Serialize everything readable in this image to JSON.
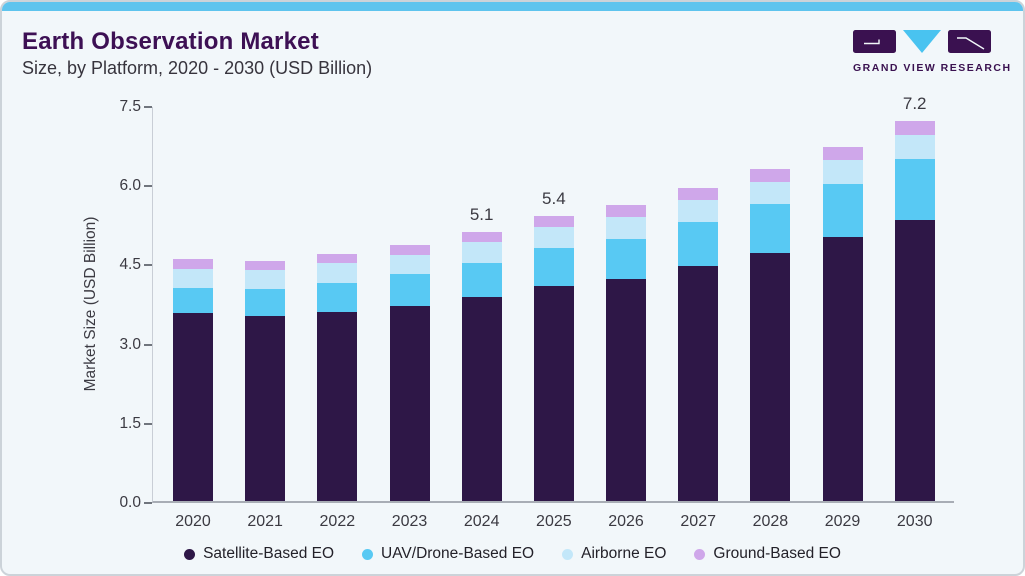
{
  "header": {
    "title": "Earth Observation Market",
    "subtitle": "Size, by Platform, 2020 - 2030 (USD Billion)"
  },
  "logo": {
    "text": "GRAND VIEW RESEARCH",
    "mark_color": "#3a1150",
    "triangle_color": "#49c3f0"
  },
  "colors": {
    "accent_top_bar": "#5ec4ee",
    "card_background": "#f2f7fa",
    "title_purple": "#3d1054",
    "axis_text": "#3b3a42"
  },
  "chart_data": {
    "type": "bar",
    "stacked": true,
    "title": "Earth Observation Market Size, by Platform, 2020 - 2030 (USD Billion)",
    "xlabel": "",
    "ylabel": "Market Size (USD Billion)",
    "ylim": [
      0,
      7.5
    ],
    "yticks": [
      "0.0",
      "1.5",
      "3.0",
      "4.5",
      "6.0",
      "7.5"
    ],
    "grid": false,
    "legend_position": "bottom",
    "categories": [
      "2020",
      "2021",
      "2022",
      "2023",
      "2024",
      "2025",
      "2026",
      "2027",
      "2028",
      "2029",
      "2030"
    ],
    "series": [
      {
        "name": "Satellite-Based EO",
        "color": "#2e1747",
        "values": [
          3.56,
          3.5,
          3.58,
          3.7,
          3.87,
          4.08,
          4.21,
          4.45,
          4.7,
          5.0,
          5.33
        ]
      },
      {
        "name": "UAV/Drone-Based EO",
        "color": "#58c9f3",
        "values": [
          0.47,
          0.52,
          0.55,
          0.6,
          0.64,
          0.72,
          0.76,
          0.83,
          0.93,
          1.01,
          1.14
        ]
      },
      {
        "name": "Airborne EO",
        "color": "#c3e7f9",
        "values": [
          0.37,
          0.35,
          0.37,
          0.36,
          0.4,
          0.39,
          0.41,
          0.42,
          0.41,
          0.44,
          0.46
        ]
      },
      {
        "name": "Ground-Based EO",
        "color": "#cfa7ea",
        "values": [
          0.18,
          0.18,
          0.18,
          0.18,
          0.19,
          0.21,
          0.22,
          0.23,
          0.24,
          0.25,
          0.27
        ]
      }
    ],
    "bar_labels": [
      "",
      "",
      "",
      "",
      "5.1",
      "5.4",
      "",
      "",
      "",
      "",
      "7.2"
    ]
  }
}
